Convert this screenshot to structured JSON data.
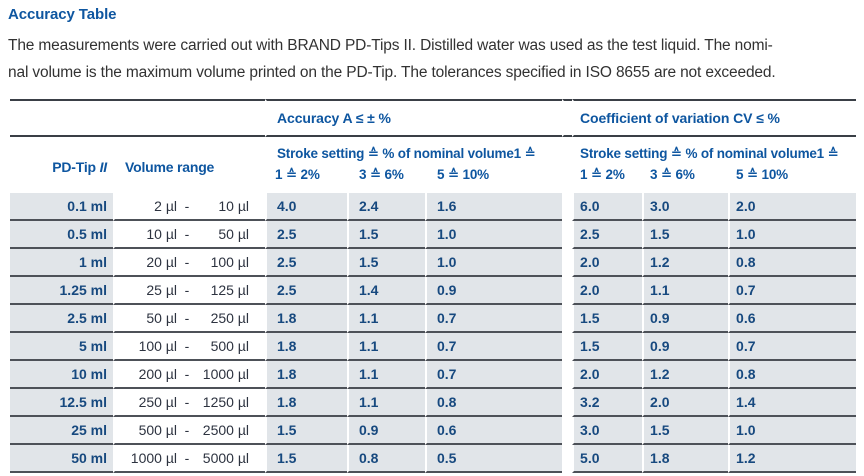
{
  "page": {
    "title": "Accuracy Table",
    "intro_line1": "The measurements were carried out with BRAND PD-Tips II. Distilled water was used as the test liquid. The nomi-",
    "intro_line2": "nal volume is the maximum volume printed on the PD-Tip. The tolerances specified in ISO 8655 are not exceeded."
  },
  "colors": {
    "header_blue": "#0e56a0",
    "value_navy": "#17497f",
    "row_background": "#e1e5e9",
    "rule_dark": "#3a3f46",
    "row_separator": "#4d5158"
  },
  "table": {
    "group_headers": {
      "accuracy": "Accuracy A ≤ ± %",
      "cv": "Coefficient of variation CV ≤ %"
    },
    "col_headers": {
      "pdtip": "PD-Tip",
      "pdtip_suffix": "II",
      "volume_range": "Volume range",
      "stroke": "Stroke setting ≙ % of nominal volume1 ≙"
    },
    "sub_headers": [
      "1 ≙ 2%",
      "3 ≙ 6%",
      "5 ≙ 10%"
    ],
    "range_separator": "-",
    "rows": [
      {
        "tip": "0.1 ml",
        "range_from": "2 µl",
        "range_to": "10 µl",
        "accuracy": [
          "4.0",
          "2.4",
          "1.6"
        ],
        "cv": [
          "6.0",
          "3.0",
          "2.0"
        ]
      },
      {
        "tip": "0.5 ml",
        "range_from": "10 µl",
        "range_to": "50 µl",
        "accuracy": [
          "2.5",
          "1.5",
          "1.0"
        ],
        "cv": [
          "2.5",
          "1.5",
          "1.0"
        ]
      },
      {
        "tip": "1 ml",
        "range_from": "20 µl",
        "range_to": "100 µl",
        "accuracy": [
          "2.5",
          "1.5",
          "1.0"
        ],
        "cv": [
          "2.0",
          "1.2",
          "0.8"
        ]
      },
      {
        "tip": "1.25 ml",
        "range_from": "25 µl",
        "range_to": "125 µl",
        "accuracy": [
          "2.5",
          "1.4",
          "0.9"
        ],
        "cv": [
          "2.0",
          "1.1",
          "0.7"
        ]
      },
      {
        "tip": "2.5 ml",
        "range_from": "50 µl",
        "range_to": "250 µl",
        "accuracy": [
          "1.8",
          "1.1",
          "0.7"
        ],
        "cv": [
          "1.5",
          "0.9",
          "0.6"
        ]
      },
      {
        "tip": "5 ml",
        "range_from": "100 µl",
        "range_to": "500 µl",
        "accuracy": [
          "1.8",
          "1.1",
          "0.7"
        ],
        "cv": [
          "1.5",
          "0.9",
          "0.7"
        ]
      },
      {
        "tip": "10 ml",
        "range_from": "200 µl",
        "range_to": "1000 µl",
        "accuracy": [
          "1.8",
          "1.1",
          "0.7"
        ],
        "cv": [
          "2.0",
          "1.2",
          "0.8"
        ]
      },
      {
        "tip": "12.5 ml",
        "range_from": "250 µl",
        "range_to": "1250 µl",
        "accuracy": [
          "1.8",
          "1.1",
          "0.8"
        ],
        "cv": [
          "3.2",
          "2.0",
          "1.4"
        ]
      },
      {
        "tip": "25 ml",
        "range_from": "500 µl",
        "range_to": "2500 µl",
        "accuracy": [
          "1.5",
          "0.9",
          "0.6"
        ],
        "cv": [
          "3.0",
          "1.5",
          "1.0"
        ]
      },
      {
        "tip": "50 ml",
        "range_from": "1000 µl",
        "range_to": "5000 µl",
        "accuracy": [
          "1.5",
          "0.8",
          "0.5"
        ],
        "cv": [
          "5.0",
          "1.8",
          "1.2"
        ]
      }
    ]
  }
}
